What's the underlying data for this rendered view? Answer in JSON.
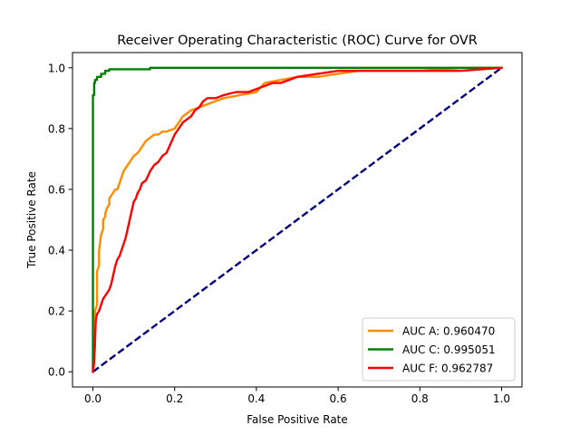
{
  "chart_data": {
    "type": "line",
    "title": "Receiver Operating Characteristic (ROC) Curve for OVR",
    "xlabel": "False Positive Rate",
    "ylabel": "True Positive Rate",
    "xlim": [
      -0.05,
      1.05
    ],
    "ylim": [
      -0.05,
      1.05
    ],
    "xticks": [
      0.0,
      0.2,
      0.4,
      0.6,
      0.8,
      1.0
    ],
    "yticks": [
      0.0,
      0.2,
      0.4,
      0.6,
      0.8,
      1.0
    ],
    "xtick_labels": [
      "0.0",
      "0.2",
      "0.4",
      "0.6",
      "0.8",
      "1.0"
    ],
    "ytick_labels": [
      "0.0",
      "0.2",
      "0.4",
      "0.6",
      "0.8",
      "1.0"
    ],
    "grid": false,
    "legend_position": "lower-right",
    "diagonal": {
      "x": [
        0,
        1
      ],
      "y": [
        0,
        1
      ],
      "color": "#000080",
      "style": "dashed"
    },
    "series": [
      {
        "name": "AUC A: 0.960470",
        "color": "#ff8c00",
        "x": [
          0,
          0,
          0.005,
          0.005,
          0.01,
          0.01,
          0.015,
          0.015,
          0.02,
          0.025,
          0.025,
          0.03,
          0.03,
          0.035,
          0.04,
          0.04,
          0.045,
          0.05,
          0.055,
          0.06,
          0.065,
          0.07,
          0.075,
          0.08,
          0.09,
          0.1,
          0.11,
          0.12,
          0.13,
          0.14,
          0.15,
          0.16,
          0.17,
          0.18,
          0.2,
          0.21,
          0.22,
          0.24,
          0.26,
          0.28,
          0.3,
          0.32,
          0.36,
          0.4,
          0.42,
          0.46,
          0.5,
          0.55,
          0.6,
          0.65,
          0.7,
          0.8,
          0.9,
          1.0
        ],
        "y": [
          0,
          0.05,
          0.08,
          0.2,
          0.22,
          0.33,
          0.35,
          0.4,
          0.45,
          0.47,
          0.5,
          0.51,
          0.52,
          0.54,
          0.55,
          0.57,
          0.58,
          0.59,
          0.6,
          0.6,
          0.62,
          0.64,
          0.66,
          0.67,
          0.69,
          0.71,
          0.72,
          0.74,
          0.76,
          0.77,
          0.78,
          0.78,
          0.79,
          0.79,
          0.8,
          0.82,
          0.84,
          0.86,
          0.87,
          0.88,
          0.89,
          0.9,
          0.91,
          0.92,
          0.95,
          0.96,
          0.97,
          0.97,
          0.98,
          0.99,
          0.99,
          0.99,
          1.0,
          1.0
        ]
      },
      {
        "name": "AUC C: 0.995051",
        "color": "#008000",
        "x": [
          0,
          0,
          0.003,
          0.005,
          0.01,
          0.02,
          0.03,
          0.04,
          0.07,
          0.14,
          0.2,
          0.3,
          0.5,
          0.7,
          1.0
        ],
        "y": [
          0,
          0.91,
          0.95,
          0.96,
          0.97,
          0.98,
          0.99,
          0.995,
          0.995,
          1.0,
          1.0,
          1.0,
          1.0,
          1.0,
          1.0
        ],
        "interp": "step"
      },
      {
        "name": "AUC F: 0.962787",
        "color": "#ff0000",
        "x": [
          0,
          0.003,
          0.005,
          0.007,
          0.01,
          0.015,
          0.02,
          0.025,
          0.03,
          0.035,
          0.04,
          0.045,
          0.05,
          0.055,
          0.06,
          0.065,
          0.07,
          0.075,
          0.08,
          0.085,
          0.09,
          0.095,
          0.1,
          0.105,
          0.11,
          0.115,
          0.12,
          0.13,
          0.14,
          0.15,
          0.16,
          0.17,
          0.18,
          0.19,
          0.2,
          0.21,
          0.22,
          0.24,
          0.25,
          0.26,
          0.27,
          0.28,
          0.3,
          0.32,
          0.35,
          0.38,
          0.4,
          0.42,
          0.44,
          0.46,
          0.48,
          0.5,
          0.55,
          0.6,
          0.7,
          0.8,
          0.9,
          1.0
        ],
        "y": [
          0,
          0.03,
          0.1,
          0.17,
          0.19,
          0.2,
          0.22,
          0.24,
          0.25,
          0.26,
          0.27,
          0.29,
          0.32,
          0.35,
          0.37,
          0.38,
          0.4,
          0.42,
          0.44,
          0.47,
          0.5,
          0.53,
          0.56,
          0.57,
          0.59,
          0.6,
          0.62,
          0.63,
          0.66,
          0.68,
          0.69,
          0.71,
          0.72,
          0.75,
          0.78,
          0.8,
          0.82,
          0.84,
          0.86,
          0.87,
          0.89,
          0.9,
          0.9,
          0.91,
          0.92,
          0.92,
          0.93,
          0.94,
          0.95,
          0.95,
          0.96,
          0.97,
          0.98,
          0.99,
          0.99,
          0.99,
          0.99,
          1.0
        ]
      }
    ]
  }
}
